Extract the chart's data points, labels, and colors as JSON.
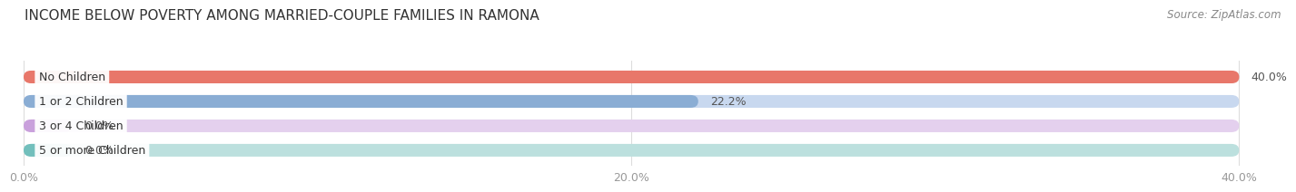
{
  "title": "INCOME BELOW POVERTY AMONG MARRIED-COUPLE FAMILIES IN RAMONA",
  "source": "Source: ZipAtlas.com",
  "categories": [
    "No Children",
    "1 or 2 Children",
    "3 or 4 Children",
    "5 or more Children"
  ],
  "values": [
    40.0,
    22.2,
    0.0,
    0.0
  ],
  "bar_colors": [
    "#e8776a",
    "#8aadd4",
    "#c9a0dc",
    "#72bfbc"
  ],
  "bar_bg_colors": [
    "#f2c4bc",
    "#c8d8ef",
    "#e4d0ee",
    "#bce0de"
  ],
  "xlim": [
    0,
    40.0
  ],
  "xticks": [
    0.0,
    20.0,
    40.0
  ],
  "xtick_labels": [
    "0.0%",
    "20.0%",
    "40.0%"
  ],
  "title_fontsize": 11,
  "source_fontsize": 8.5,
  "label_fontsize": 9,
  "value_fontsize": 9,
  "tick_fontsize": 9,
  "background_color": "#ffffff",
  "grid_color": "#dddddd",
  "text_color": "#555555",
  "tick_color": "#999999"
}
